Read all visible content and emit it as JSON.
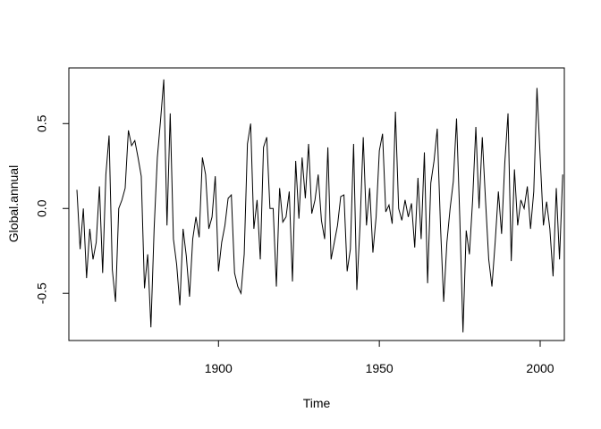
{
  "chart_data": {
    "type": "line",
    "title": "",
    "xlabel": "Time",
    "ylabel": "Global.annual",
    "xlim": [
      1856,
      2005
    ],
    "ylim": [
      -0.72,
      0.77
    ],
    "x_ticks": [
      1900,
      1950,
      2000
    ],
    "x_tick_labels": [
      "1900",
      "1950",
      "2000"
    ],
    "y_ticks": [
      -0.5,
      0.0,
      0.5
    ],
    "y_tick_labels": [
      "-0.5",
      "0.0",
      "0.5"
    ],
    "grid": false,
    "legend": "none",
    "series": [
      {
        "name": "",
        "color": "#000000",
        "x_start": 1856,
        "x_step": 1,
        "values": [
          0.11,
          -0.24,
          0.0,
          -0.41,
          -0.12,
          -0.3,
          -0.2,
          0.13,
          -0.38,
          0.2,
          0.43,
          -0.36,
          -0.55,
          0.0,
          0.05,
          0.12,
          0.46,
          0.37,
          0.4,
          0.3,
          0.19,
          -0.47,
          -0.27,
          -0.7,
          -0.12,
          0.3,
          0.52,
          0.76,
          -0.1,
          0.56,
          -0.18,
          -0.33,
          -0.57,
          -0.12,
          -0.28,
          -0.52,
          -0.18,
          -0.05,
          -0.17,
          0.3,
          0.2,
          -0.12,
          -0.05,
          0.19,
          -0.37,
          -0.2,
          -0.1,
          0.06,
          0.08,
          -0.38,
          -0.46,
          -0.5,
          -0.27,
          0.38,
          0.5,
          -0.12,
          0.05,
          -0.3,
          0.36,
          0.42,
          0.0,
          0.0,
          -0.46,
          0.12,
          -0.08,
          -0.05,
          0.1,
          -0.43,
          0.28,
          -0.06,
          0.3,
          0.06,
          0.38,
          -0.03,
          0.05,
          0.2,
          -0.07,
          -0.18,
          0.36,
          -0.3,
          -0.2,
          -0.1,
          0.07,
          0.08,
          -0.37,
          -0.24,
          0.38,
          -0.48,
          -0.1,
          0.42,
          -0.1,
          0.12,
          -0.26,
          -0.05,
          0.34,
          0.44,
          -0.02,
          0.02,
          -0.09,
          0.57,
          0.0,
          -0.07,
          0.05,
          -0.05,
          0.03,
          -0.23,
          0.18,
          -0.18,
          0.33,
          -0.44,
          0.15,
          0.28,
          0.47,
          -0.1,
          -0.55,
          -0.2,
          0.0,
          0.16,
          0.53,
          -0.05,
          -0.73,
          -0.13,
          -0.27,
          0.05,
          0.48,
          0.0,
          0.42,
          0.05,
          -0.3,
          -0.46,
          -0.2,
          0.1,
          -0.15,
          0.27,
          0.56,
          -0.31,
          0.23,
          -0.1,
          0.05,
          0.0,
          0.13,
          -0.12,
          0.1,
          0.71,
          0.3,
          -0.1,
          0.04,
          -0.12,
          -0.4,
          0.12,
          -0.3,
          0.2
        ]
      }
    ]
  }
}
